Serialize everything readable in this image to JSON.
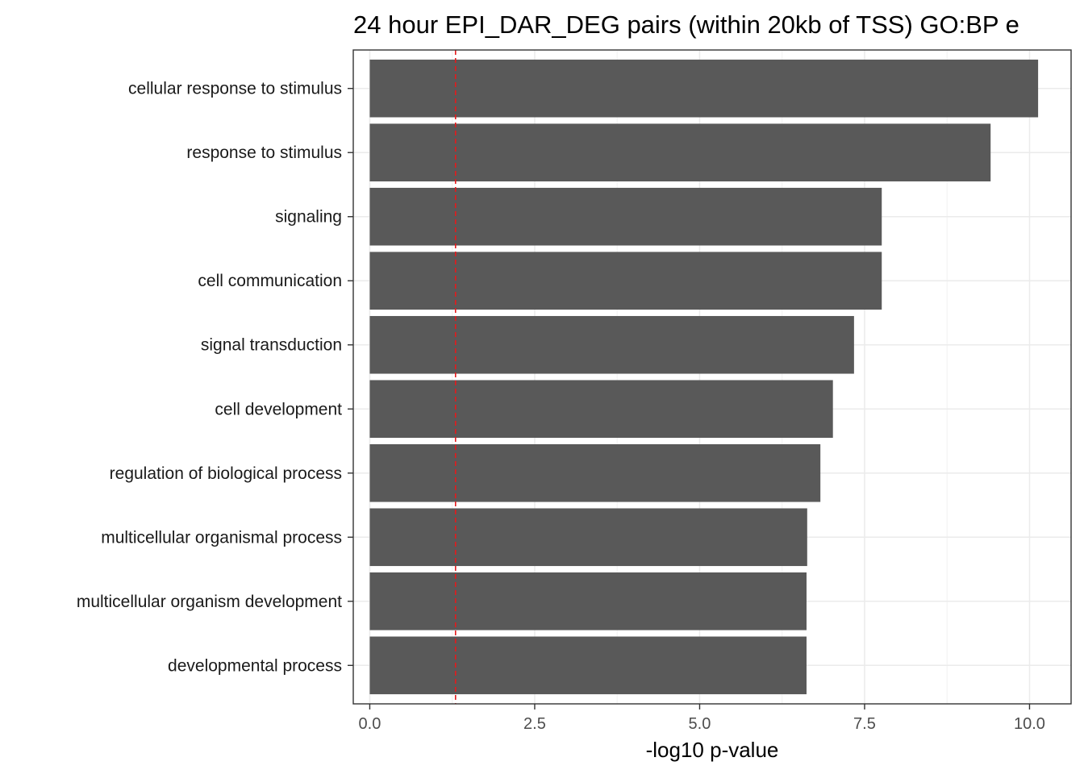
{
  "chart_data": {
    "type": "bar",
    "orientation": "horizontal",
    "title": "24 hour EPI_DAR_DEG pairs (within 20kb of TSS) GO:BP e",
    "xlabel": "-log10 p-value",
    "ylabel": "",
    "categories": [
      "cellular response to stimulus",
      "response to stimulus",
      "signaling",
      "cell communication",
      "signal transduction",
      "cell development",
      "regulation of biological process",
      "multicellular organismal process",
      "multicellular organism development",
      "developmental process"
    ],
    "values": [
      10.13,
      9.41,
      7.76,
      7.76,
      7.34,
      7.02,
      6.83,
      6.63,
      6.62,
      6.62
    ],
    "xlim": [
      -0.25,
      10.63
    ],
    "xticks": [
      0.0,
      2.5,
      5.0,
      7.5,
      10.0
    ],
    "xtick_labels": [
      "0.0",
      "2.5",
      "5.0",
      "7.5",
      "10.0"
    ],
    "reference_line": {
      "value": 1.3,
      "style": "dashed",
      "color": "#e41a1c"
    },
    "bar_color": "#595959",
    "grid": true,
    "legend": "none"
  }
}
